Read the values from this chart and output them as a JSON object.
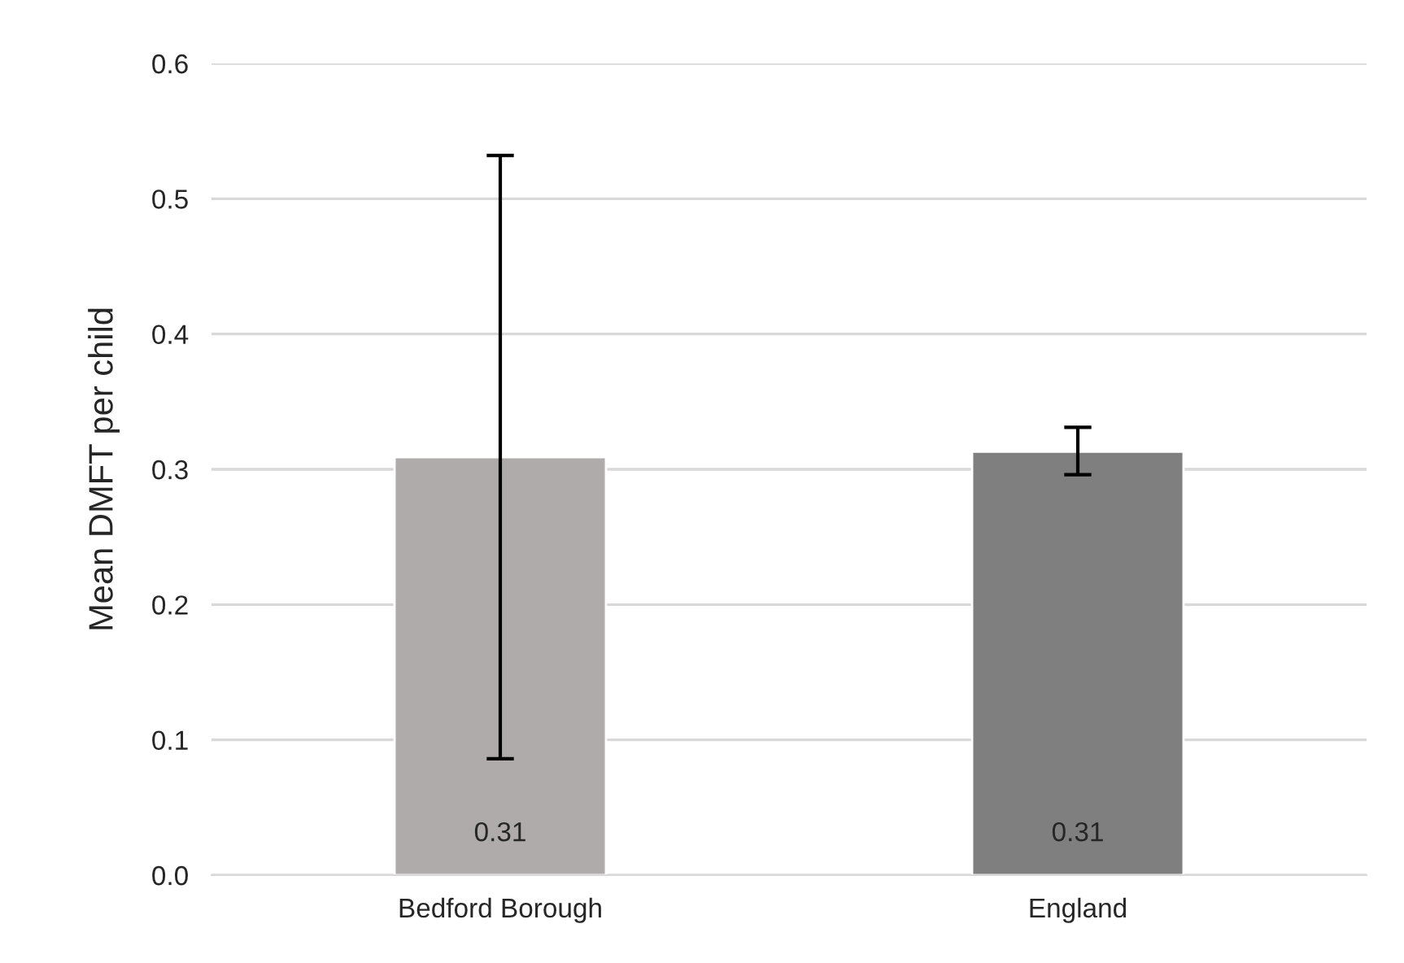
{
  "chart_data": {
    "type": "bar",
    "ylabel": "Mean DMFT per child",
    "categories": [
      "Bedford Borough",
      "England"
    ],
    "values": [
      0.309,
      0.313
    ],
    "colors": [
      "#aeabaa",
      "#7f7f7f"
    ],
    "errors": [
      [
        0.086,
        0.532
      ],
      [
        0.296,
        0.331
      ]
    ],
    "value_labels": [
      "0.31",
      "0.31"
    ],
    "ylim": [
      0,
      0.6
    ],
    "yticks": [
      {
        "value": 0,
        "label": "0.0"
      },
      {
        "value": 0.1,
        "label": "0.1"
      },
      {
        "value": 0.2,
        "label": "0.2"
      },
      {
        "value": 0.3,
        "label": "0.3"
      },
      {
        "value": 0.4,
        "label": "0.4"
      },
      {
        "value": 0.5,
        "label": "0.5"
      },
      {
        "value": 0.6,
        "label": "0.6"
      }
    ],
    "grid": "y",
    "legend": false
  }
}
